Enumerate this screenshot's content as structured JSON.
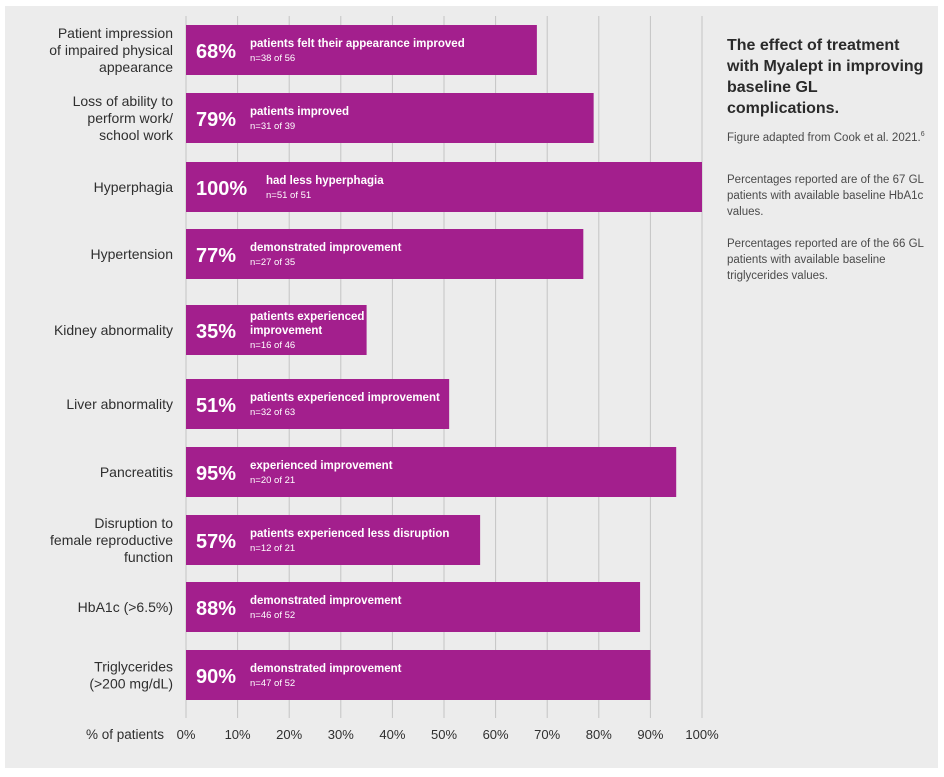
{
  "chart_data": {
    "type": "bar",
    "orientation": "horizontal",
    "title": "The effect of treatment with Myalept in improving baseline GL complications.",
    "source": "Figure adapted from Cook et al. 2021.",
    "source_ref": "6",
    "notes": [
      "Percentages reported are of the 67 GL patients with available baseline HbA1c values.",
      "Percentages reported are of the 66 GL patients with available baseline triglycerides values."
    ],
    "xlabel": "% of patients",
    "xlim": [
      0,
      100
    ],
    "xticks": [
      "0%",
      "10%",
      "20%",
      "30%",
      "40%",
      "50%",
      "60%",
      "70%",
      "80%",
      "90%",
      "100%"
    ],
    "tick_values": [
      0,
      10,
      20,
      30,
      40,
      50,
      60,
      70,
      80,
      90,
      100
    ],
    "grid": true,
    "bar_color": "#a31f8d",
    "categories": [
      [
        "Patient impression",
        "of impaired physical",
        "appearance"
      ],
      [
        "Loss of ability to",
        "perform work/",
        "school work"
      ],
      [
        "Hyperphagia"
      ],
      [
        "Hypertension"
      ],
      [
        "Kidney abnormality"
      ],
      [
        "Liver abnormality"
      ],
      [
        "Pancreatitis"
      ],
      [
        "Disruption to",
        "female reproductive",
        "function"
      ],
      [
        "HbA1c (>6.5%)"
      ],
      [
        "Triglycerides",
        "(>200 mg/dL)"
      ]
    ],
    "values": [
      68,
      79,
      100,
      77,
      35,
      51,
      95,
      57,
      88,
      90
    ],
    "pct_labels": [
      "68%",
      "79%",
      "100%",
      "77%",
      "35%",
      "51%",
      "95%",
      "57%",
      "88%",
      "90%"
    ],
    "descriptions": [
      [
        "patients felt their appearance improved"
      ],
      [
        "patients improved"
      ],
      [
        "had less hyperphagia"
      ],
      [
        "demonstrated improvement"
      ],
      [
        "patients experienced",
        "improvement"
      ],
      [
        "patients experienced improvement"
      ],
      [
        "experienced improvement"
      ],
      [
        "patients experienced less disruption"
      ],
      [
        "demonstrated improvement"
      ],
      [
        "demonstrated improvement"
      ]
    ],
    "counts": [
      "n=38 of 56",
      "n=31 of 39",
      "n=51 of 51",
      "n=27 of 35",
      "n=16 of 46",
      "n=32 of 63",
      "n=20 of 21",
      "n=12 of 21",
      "n=46 of 52",
      "n=47 of 52"
    ]
  }
}
